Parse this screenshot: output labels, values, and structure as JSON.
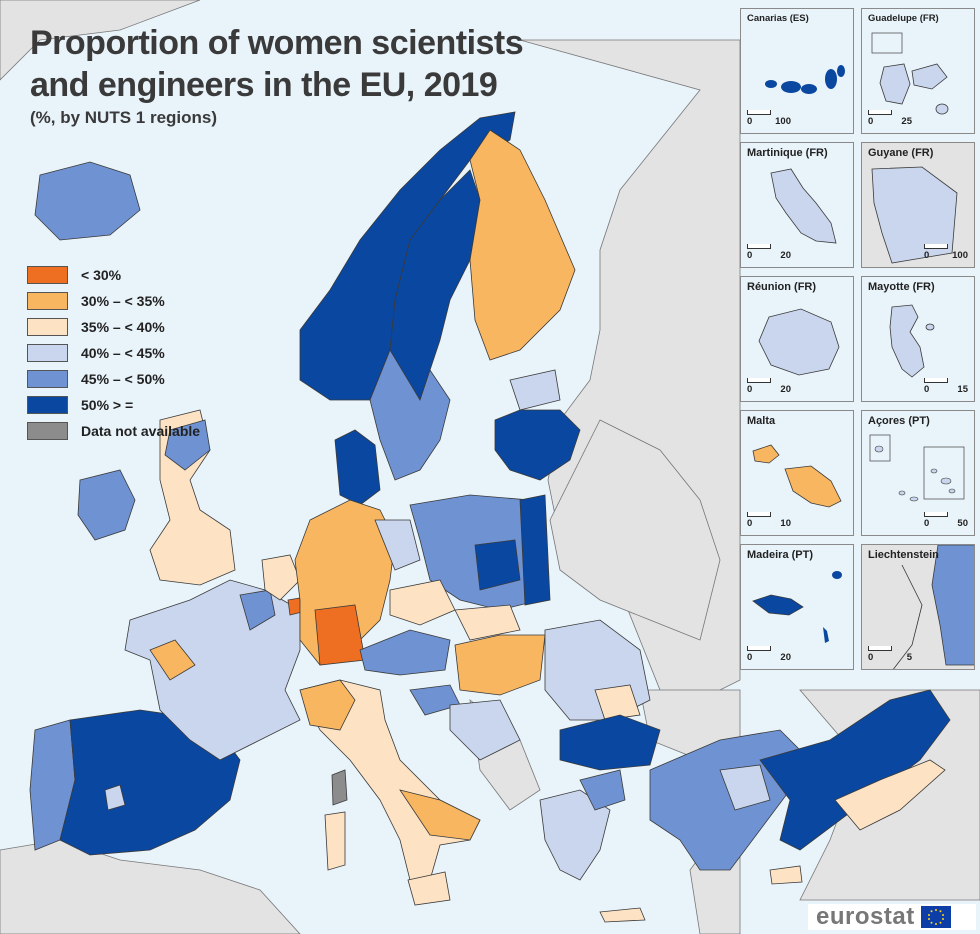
{
  "title_line1": "Proportion of women scientists",
  "title_line2": "and engineers in the EU, 2019",
  "subtitle": "(%, by NUTS 1 regions)",
  "colors": {
    "sea": "#e8f3fa",
    "non_eu": "#e3e3e3",
    "border": "#3a3a3a",
    "lt30": "#ef6f22",
    "c30_35": "#f8b660",
    "c35_40": "#fde3c4",
    "c40_45": "#c9d6ed",
    "c45_50": "#6f93d2",
    "ge50": "#0a47a0",
    "na": "#8c8c8c"
  },
  "legend": [
    {
      "label": "< 30%",
      "color": "#ef6f22"
    },
    {
      "label": "30% – < 35%",
      "color": "#f8b660"
    },
    {
      "label": "35% – < 40%",
      "color": "#fde3c4"
    },
    {
      "label": "40% – < 45%",
      "color": "#c9d6ed"
    },
    {
      "label": "45% – < 50%",
      "color": "#6f93d2"
    },
    {
      "label": "50% > =",
      "color": "#0a47a0"
    },
    {
      "label": "Data not available",
      "color": "#8c8c8c"
    }
  ],
  "insets": {
    "canarias": {
      "title": "Canarias (ES)",
      "scale": [
        "0",
        "100"
      ]
    },
    "guadelupe": {
      "title": "Guadelupe (FR)",
      "scale": [
        "0",
        "25"
      ]
    },
    "martinique": {
      "title": "Martinique (FR)",
      "scale": [
        "0",
        "20"
      ]
    },
    "guyane": {
      "title": "Guyane (FR)",
      "scale": [
        "0",
        "100"
      ]
    },
    "reunion": {
      "title": "Réunion (FR)",
      "scale": [
        "0",
        "20"
      ]
    },
    "mayotte": {
      "title": "Mayotte (FR)",
      "scale": [
        "0",
        "15"
      ]
    },
    "malta": {
      "title": "Malta",
      "scale": [
        "0",
        "10"
      ]
    },
    "acores": {
      "title": "Açores (PT)",
      "scale": [
        "0",
        "50"
      ]
    },
    "madeira": {
      "title": "Madeira (PT)",
      "scale": [
        "0",
        "20"
      ]
    },
    "liechtenstein": {
      "title": "Liechtenstein",
      "scale": [
        "0",
        "5"
      ]
    }
  },
  "logo": "eurostat"
}
